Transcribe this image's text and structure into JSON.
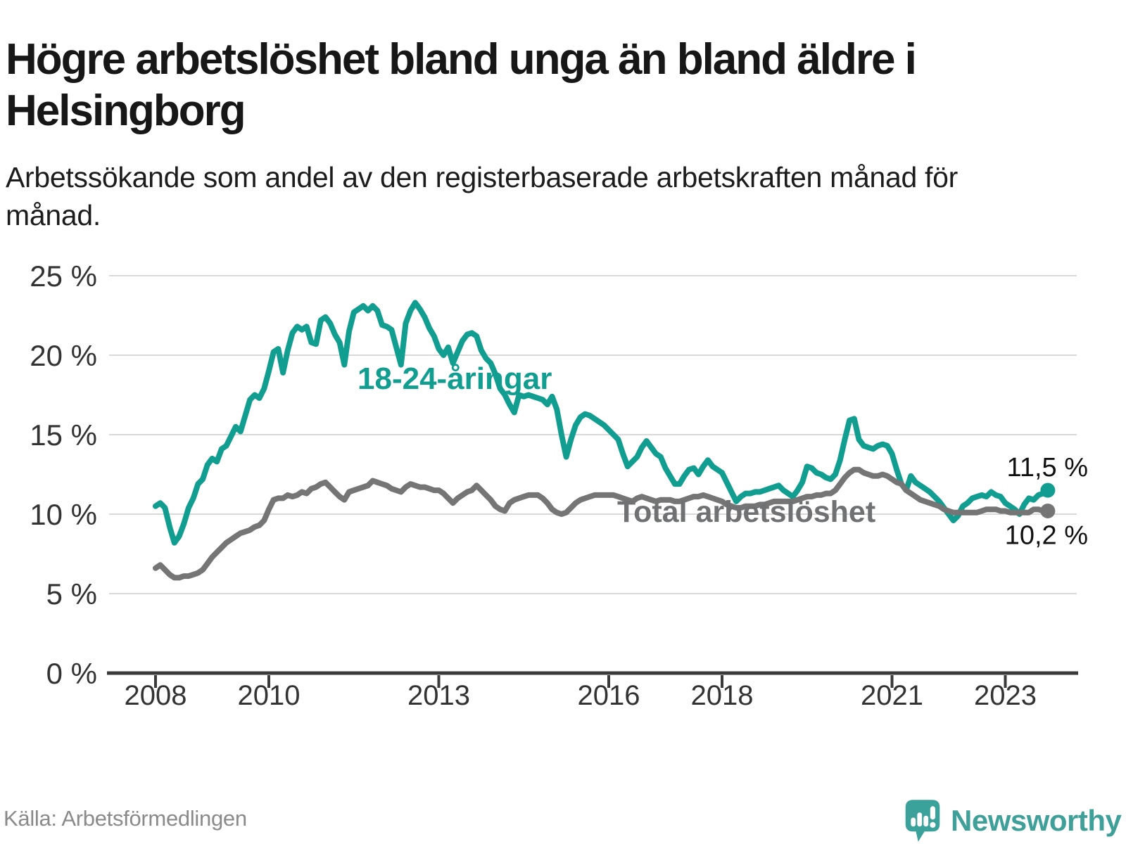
{
  "header": {
    "title": "Högre arbetslöshet bland unga än bland äldre i Helsingborg",
    "subtitle": "Arbetssökande som andel av den registerbaserade arbetskraften månad för månad."
  },
  "chart_data": {
    "type": "line",
    "title": "Högre arbetslöshet bland unga än bland äldre i Helsingborg",
    "unit": "%",
    "frequency": "monthly",
    "x_start": "2008-01",
    "x_end": "2023-10",
    "x_tick_years": [
      2008,
      2010,
      2013,
      2016,
      2018,
      2021,
      2023
    ],
    "x_tick_labels": [
      "2008",
      "2010",
      "2013",
      "2016",
      "2018",
      "2021",
      "2023"
    ],
    "y_ticks": [
      0,
      5,
      10,
      15,
      20,
      25
    ],
    "y_tick_labels": [
      "0 %",
      "5 %",
      "10 %",
      "15 %",
      "20 %",
      "25 %"
    ],
    "ylim": [
      0,
      26.5
    ],
    "grid": "horizontal",
    "legend": "inline-labels",
    "series": [
      {
        "name": "18-24-åringar",
        "color": "#119E90",
        "label_color": "#119E90",
        "end_label": "11,5 %",
        "end_value": 11.5,
        "values": [
          10.5,
          10.7,
          10.4,
          9.2,
          8.2,
          8.6,
          9.4,
          10.4,
          11.0,
          11.9,
          12.2,
          13.1,
          13.5,
          13.3,
          14.1,
          14.3,
          14.9,
          15.5,
          15.2,
          16.2,
          17.2,
          17.5,
          17.3,
          17.9,
          19.0,
          20.2,
          20.4,
          18.9,
          20.3,
          21.4,
          21.8,
          21.6,
          21.8,
          20.8,
          20.7,
          22.2,
          22.4,
          22.0,
          21.3,
          20.8,
          19.4,
          21.5,
          22.7,
          22.9,
          23.1,
          22.8,
          23.1,
          22.8,
          21.9,
          21.8,
          21.6,
          20.5,
          19.4,
          22.0,
          22.8,
          23.3,
          22.9,
          22.4,
          21.7,
          21.2,
          20.4,
          20.0,
          20.5,
          19.5,
          20.2,
          20.9,
          21.3,
          21.4,
          21.2,
          20.3,
          19.8,
          19.5,
          18.8,
          17.9,
          17.5,
          16.9,
          16.4,
          17.5,
          17.4,
          17.5,
          17.4,
          17.3,
          17.2,
          16.9,
          17.4,
          16.6,
          15.0,
          13.6,
          14.7,
          15.6,
          16.1,
          16.3,
          16.2,
          16.0,
          15.8,
          15.6,
          15.3,
          15.0,
          14.7,
          13.8,
          13.0,
          13.3,
          13.6,
          14.2,
          14.6,
          14.2,
          13.8,
          13.6,
          12.9,
          12.4,
          11.9,
          11.9,
          12.4,
          12.8,
          12.9,
          12.5,
          13.0,
          13.4,
          13.0,
          12.8,
          12.6,
          12.0,
          11.4,
          10.8,
          11.1,
          11.3,
          11.3,
          11.4,
          11.4,
          11.5,
          11.6,
          11.7,
          11.8,
          11.5,
          11.3,
          11.1,
          11.5,
          12.0,
          13.0,
          12.9,
          12.6,
          12.5,
          12.3,
          12.2,
          12.5,
          13.4,
          14.7,
          15.9,
          16.0,
          14.7,
          14.3,
          14.2,
          14.1,
          14.3,
          14.4,
          14.3,
          13.8,
          12.8,
          11.9,
          11.5,
          12.4,
          12.0,
          11.8,
          11.6,
          11.4,
          11.1,
          10.8,
          10.4,
          10.0,
          9.6,
          9.9,
          10.5,
          10.7,
          11.0,
          11.1,
          11.2,
          11.1,
          11.4,
          11.2,
          11.1,
          10.7,
          10.5,
          10.3,
          10.0,
          10.6,
          11.0,
          10.9,
          11.2,
          11.3,
          11.5
        ]
      },
      {
        "name": "Total arbetslöshet",
        "color": "#757575",
        "label_color": "#6f7173",
        "end_label": "10,2 %",
        "end_value": 10.2,
        "values": [
          6.6,
          6.8,
          6.5,
          6.2,
          6.0,
          6.0,
          6.1,
          6.1,
          6.2,
          6.3,
          6.5,
          6.9,
          7.3,
          7.6,
          7.9,
          8.2,
          8.4,
          8.6,
          8.8,
          8.9,
          9.0,
          9.2,
          9.3,
          9.6,
          10.3,
          10.9,
          11.0,
          11.0,
          11.2,
          11.1,
          11.2,
          11.4,
          11.3,
          11.6,
          11.7,
          11.9,
          12.0,
          11.7,
          11.4,
          11.1,
          10.9,
          11.4,
          11.5,
          11.6,
          11.7,
          11.8,
          12.1,
          12.0,
          11.9,
          11.8,
          11.6,
          11.5,
          11.4,
          11.7,
          11.9,
          11.8,
          11.7,
          11.7,
          11.6,
          11.5,
          11.5,
          11.3,
          11.0,
          10.7,
          11.0,
          11.2,
          11.4,
          11.5,
          11.8,
          11.5,
          11.2,
          10.9,
          10.5,
          10.3,
          10.2,
          10.7,
          10.9,
          11.0,
          11.1,
          11.2,
          11.2,
          11.2,
          11.0,
          10.7,
          10.3,
          10.1,
          10.0,
          10.1,
          10.4,
          10.7,
          10.9,
          11.0,
          11.1,
          11.2,
          11.2,
          11.2,
          11.2,
          11.2,
          11.1,
          11.0,
          10.9,
          10.8,
          11.0,
          11.1,
          11.0,
          10.9,
          10.8,
          10.9,
          10.9,
          10.9,
          10.8,
          10.8,
          10.9,
          11.0,
          11.1,
          11.1,
          11.2,
          11.1,
          11.0,
          10.9,
          10.8,
          10.6,
          10.5,
          10.4,
          10.4,
          10.5,
          10.5,
          10.5,
          10.6,
          10.6,
          10.7,
          10.8,
          10.8,
          10.8,
          10.8,
          10.8,
          10.9,
          11.0,
          11.1,
          11.1,
          11.2,
          11.2,
          11.3,
          11.3,
          11.5,
          11.9,
          12.3,
          12.6,
          12.8,
          12.8,
          12.6,
          12.5,
          12.4,
          12.4,
          12.5,
          12.4,
          12.2,
          12.0,
          11.9,
          11.5,
          11.3,
          11.1,
          10.9,
          10.8,
          10.7,
          10.6,
          10.5,
          10.3,
          10.2,
          10.1,
          10.1,
          10.1,
          10.1,
          10.1,
          10.1,
          10.2,
          10.3,
          10.3,
          10.3,
          10.2,
          10.2,
          10.1,
          10.1,
          10.1,
          10.1,
          10.1,
          10.3,
          10.3,
          10.2,
          10.2
        ]
      }
    ],
    "axis_colors": {
      "gridline": "#d9d9d9",
      "axis_line": "#3a3a3a",
      "tick_text": "#333333",
      "end_label_text": "#111111"
    }
  },
  "footer": {
    "source": "Källa: Arbetsförmedlingen",
    "brand": "Newsworthy"
  },
  "colors": {
    "accent_teal": "#119E90",
    "series_gray": "#757575",
    "brand_teal": "#3f9f99"
  }
}
